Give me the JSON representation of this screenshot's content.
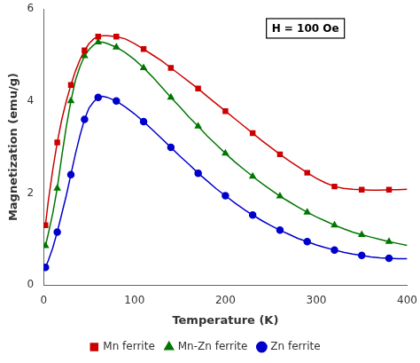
{
  "chart_data": {
    "type": "line",
    "xlabel": "Temperature (K)",
    "ylabel": "Magnetization (emu/g)",
    "annotation": "H = 100 Oe",
    "xlim": [
      0,
      400
    ],
    "ylim": [
      0,
      6
    ],
    "xticks": [
      0,
      100,
      200,
      300,
      400
    ],
    "yticks": [
      0,
      2,
      4,
      6
    ],
    "grid": false,
    "legend": "bottom",
    "x": [
      2,
      5,
      10,
      15,
      20,
      25,
      30,
      35,
      40,
      45,
      50,
      55,
      60,
      65,
      70,
      80,
      90,
      100,
      110,
      120,
      130,
      140,
      150,
      160,
      170,
      180,
      190,
      200,
      210,
      220,
      230,
      240,
      250,
      260,
      270,
      280,
      290,
      300,
      310,
      320,
      330,
      340,
      350,
      360,
      370,
      380,
      390,
      400
    ],
    "series": [
      {
        "name": "Mn ferrite",
        "color": "#cc0000",
        "marker": "square",
        "values": [
          1.3,
          1.8,
          2.5,
          3.1,
          3.6,
          4.0,
          4.35,
          4.65,
          4.9,
          5.1,
          5.25,
          5.35,
          5.4,
          5.42,
          5.42,
          5.4,
          5.35,
          5.25,
          5.13,
          5.0,
          4.87,
          4.72,
          4.57,
          4.42,
          4.27,
          4.1,
          3.94,
          3.78,
          3.62,
          3.46,
          3.3,
          3.14,
          2.99,
          2.84,
          2.7,
          2.57,
          2.44,
          2.32,
          2.22,
          2.14,
          2.1,
          2.08,
          2.07,
          2.06,
          2.06,
          2.07,
          2.07,
          2.08
        ]
      },
      {
        "name": "Mn-Zn ferrite",
        "color": "#007700",
        "marker": "triangle",
        "values": [
          0.85,
          1.1,
          1.55,
          2.1,
          2.8,
          3.45,
          4.0,
          4.45,
          4.75,
          4.98,
          5.12,
          5.22,
          5.28,
          5.28,
          5.25,
          5.17,
          5.05,
          4.9,
          4.72,
          4.52,
          4.3,
          4.08,
          3.87,
          3.65,
          3.45,
          3.24,
          3.05,
          2.86,
          2.68,
          2.52,
          2.36,
          2.21,
          2.07,
          1.93,
          1.81,
          1.69,
          1.58,
          1.48,
          1.39,
          1.3,
          1.22,
          1.15,
          1.09,
          1.04,
          0.99,
          0.94,
          0.9,
          0.86
        ]
      },
      {
        "name": "Zn ferrite",
        "color": "#0000cc",
        "marker": "circle",
        "values": [
          0.38,
          0.52,
          0.8,
          1.15,
          1.55,
          1.95,
          2.4,
          2.85,
          3.25,
          3.6,
          3.85,
          3.98,
          4.08,
          4.1,
          4.08,
          4.0,
          3.87,
          3.72,
          3.55,
          3.37,
          3.18,
          2.99,
          2.8,
          2.62,
          2.43,
          2.26,
          2.09,
          1.94,
          1.79,
          1.65,
          1.52,
          1.4,
          1.29,
          1.19,
          1.1,
          1.01,
          0.94,
          0.87,
          0.81,
          0.76,
          0.71,
          0.67,
          0.64,
          0.61,
          0.59,
          0.58,
          0.57,
          0.57
        ]
      }
    ]
  }
}
